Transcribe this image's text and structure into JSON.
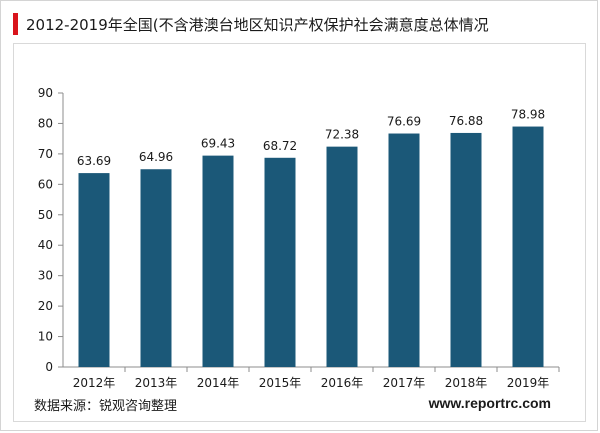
{
  "title": "2012-2019年全国(不含港澳台地区知识产权保护社会满意度总体情况",
  "source": "数据来源：锐观咨询整理",
  "website": "www.reportrc.com",
  "colors": {
    "bar": "#1b5878",
    "accent": "#d9141c",
    "axis": "#8c8c8c"
  },
  "chart_data": {
    "type": "bar",
    "title": "",
    "xlabel": "",
    "ylabel": "",
    "categories": [
      "2012年",
      "2013年",
      "2014年",
      "2015年",
      "2016年",
      "2017年",
      "2018年",
      "2019年"
    ],
    "values": [
      63.69,
      64.96,
      69.43,
      68.72,
      72.38,
      76.69,
      76.88,
      78.98
    ],
    "value_labels": [
      "63.69",
      "64.96",
      "69.43",
      "68.72",
      "72.38",
      "76.69",
      "76.88",
      "78.98"
    ],
    "ylim": [
      0,
      90
    ],
    "yticks": [
      0,
      10,
      20,
      30,
      40,
      50,
      60,
      70,
      80,
      90
    ],
    "ytick_labels": [
      "0",
      "10",
      "20",
      "30",
      "40",
      "50",
      "60",
      "70",
      "80",
      "90"
    ],
    "grid": false,
    "legend": "none"
  }
}
